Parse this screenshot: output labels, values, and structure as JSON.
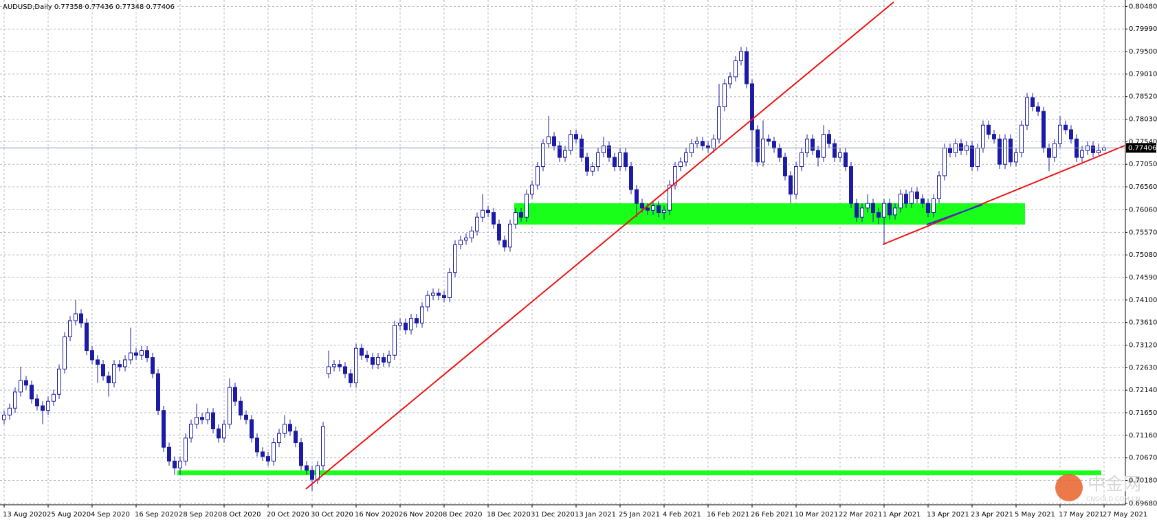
{
  "chart_data": {
    "type": "candlestick",
    "title": "AUDUSD,Daily  0.77358 0.77436 0.77348 0.77406",
    "categories": [
      "13 Aug 2020",
      null,
      null,
      null,
      null,
      null,
      null,
      null,
      "25 Aug 2020",
      null,
      null,
      null,
      null,
      null,
      null,
      null,
      "4 Sep 2020",
      null,
      null,
      null,
      null,
      null,
      null,
      null,
      "16 Sep 2020",
      null,
      null,
      null,
      null,
      null,
      null,
      null,
      "28 Sep 2020",
      null,
      null,
      null,
      null,
      null,
      null,
      null,
      "8 Oct 2020",
      null,
      null,
      null,
      null,
      null,
      null,
      null,
      "20 Oct 2020",
      null,
      null,
      null,
      null,
      null,
      null,
      null,
      "30 Oct 2020",
      null,
      null,
      null,
      null,
      null,
      null,
      null,
      "16 Nov 2020",
      null,
      null,
      null,
      null,
      null,
      null,
      null,
      "26 Nov 2020",
      null,
      null,
      null,
      null,
      null,
      null,
      null,
      "8 Dec 2020",
      null,
      null,
      null,
      null,
      null,
      null,
      null,
      "18 Dec 2020",
      null,
      null,
      null,
      null,
      null,
      null,
      null,
      "31 Dec 2020",
      null,
      null,
      null,
      null,
      null,
      null,
      null,
      "13 Jan 2021",
      null,
      null,
      null,
      null,
      null,
      null,
      null,
      "25 Jan 2021",
      null,
      null,
      null,
      null,
      null,
      null,
      null,
      "4 Feb 2021",
      null,
      null,
      null,
      null,
      null,
      null,
      null,
      "16 Feb 2021",
      null,
      null,
      null,
      null,
      null,
      null,
      null,
      "26 Feb 2021",
      null,
      null,
      null,
      null,
      null,
      null,
      null,
      "10 Mar 2021",
      null,
      null,
      null,
      null,
      null,
      null,
      null,
      "22 Mar 2021",
      null,
      null,
      null,
      null,
      null,
      null,
      null,
      "1 Apr 2021",
      null,
      null,
      null,
      null,
      null,
      null,
      null,
      "13 Apr 2021",
      null,
      null,
      null,
      null,
      null,
      null,
      null,
      "23 Apr 2021",
      null,
      null,
      null,
      null,
      null,
      null,
      null,
      "5 May 2021",
      null,
      null,
      null,
      null,
      null,
      null,
      null,
      "17 May 2021",
      null,
      null,
      null,
      null,
      null,
      null,
      null,
      "27 May 2021"
    ],
    "open": [
      0.715,
      0.716,
      0.7175,
      0.721,
      0.7235,
      0.7225,
      0.7195,
      0.718,
      0.717,
      0.719,
      0.7205,
      0.726,
      0.733,
      0.7365,
      0.738,
      0.736,
      0.73,
      0.728,
      0.727,
      0.7245,
      0.723,
      0.727,
      0.7265,
      0.728,
      0.7295,
      0.729,
      0.73,
      0.7285,
      0.725,
      0.717,
      0.709,
      0.706,
      0.7045,
      0.706,
      0.711,
      0.714,
      0.7155,
      0.715,
      0.7165,
      0.713,
      0.711,
      0.714,
      0.722,
      0.719,
      0.716,
      0.715,
      0.711,
      0.708,
      0.707,
      0.706,
      0.71,
      0.712,
      0.714,
      0.7125,
      0.71,
      0.705,
      0.704,
      0.702,
      0.705,
      0.725,
      0.7265,
      0.727,
      0.7265,
      0.725,
      0.723,
      0.7305,
      0.729,
      0.7285,
      0.727,
      0.7285,
      0.7275,
      0.729,
      0.7355,
      0.736,
      0.7345,
      0.737,
      0.736,
      0.7395,
      0.742,
      0.7425,
      0.742,
      0.7415,
      0.747,
      0.753,
      0.754,
      0.7545,
      0.756,
      0.759,
      0.7605,
      0.76,
      0.7575,
      0.754,
      0.7525,
      0.7575,
      0.76,
      0.759,
      0.764,
      0.766,
      0.77,
      0.775,
      0.7765,
      0.7745,
      0.772,
      0.7735,
      0.777,
      0.776,
      0.772,
      0.769,
      0.77,
      0.773,
      0.7745,
      0.772,
      0.77,
      0.773,
      0.77,
      0.765,
      0.762,
      0.761,
      0.7605,
      0.7615,
      0.76,
      0.7605,
      0.766,
      0.77,
      0.771,
      0.773,
      0.775,
      0.7755,
      0.7745,
      0.774,
      0.776,
      0.783,
      0.788,
      0.7895,
      0.793,
      0.795,
      0.788,
      0.778,
      0.771,
      0.776,
      0.7755,
      0.774,
      0.772,
      0.768,
      0.764,
      0.77,
      0.773,
      0.776,
      0.7735,
      0.772,
      0.777,
      0.775,
      0.772,
      0.773,
      0.77,
      0.762,
      0.759,
      0.761,
      0.762,
      0.76,
      0.759,
      0.762,
      0.7595,
      0.761,
      0.764,
      0.762,
      0.7645,
      0.763,
      0.762,
      0.76,
      0.763,
      0.768,
      0.774,
      0.773,
      0.775,
      0.7735,
      0.7745,
      0.77,
      0.774,
      0.779,
      0.777,
      0.776,
      0.7705,
      0.776,
      0.771,
      0.773,
      0.779,
      0.785,
      0.783,
      0.782,
      0.774,
      0.772,
      0.775,
      0.779,
      0.778,
      0.776,
      0.772,
      0.7735,
      0.7745,
      0.773,
      0.77358
    ],
    "high": [
      0.717,
      0.7185,
      0.722,
      0.7265,
      0.7245,
      0.7235,
      0.7205,
      0.719,
      0.72,
      0.7215,
      0.727,
      0.734,
      0.7375,
      0.741,
      0.739,
      0.737,
      0.731,
      0.729,
      0.728,
      0.7255,
      0.728,
      0.728,
      0.729,
      0.735,
      0.7305,
      0.731,
      0.731,
      0.7295,
      0.726,
      0.718,
      0.71,
      0.707,
      0.707,
      0.712,
      0.715,
      0.7185,
      0.7165,
      0.7175,
      0.7175,
      0.714,
      0.715,
      0.724,
      0.723,
      0.72,
      0.717,
      0.716,
      0.712,
      0.709,
      0.708,
      0.711,
      0.713,
      0.716,
      0.715,
      0.7135,
      0.711,
      0.706,
      0.705,
      0.706,
      0.7145,
      0.73,
      0.728,
      0.728,
      0.7275,
      0.726,
      0.7315,
      0.7315,
      0.73,
      0.7295,
      0.7295,
      0.7295,
      0.73,
      0.7365,
      0.737,
      0.737,
      0.738,
      0.738,
      0.7405,
      0.743,
      0.7435,
      0.7435,
      0.743,
      0.748,
      0.754,
      0.755,
      0.7555,
      0.757,
      0.76,
      0.764,
      0.7615,
      0.761,
      0.7585,
      0.755,
      0.7585,
      0.761,
      0.761,
      0.765,
      0.767,
      0.771,
      0.776,
      0.781,
      0.7775,
      0.7755,
      0.7745,
      0.778,
      0.778,
      0.777,
      0.773,
      0.771,
      0.774,
      0.7765,
      0.7755,
      0.773,
      0.774,
      0.774,
      0.771,
      0.766,
      0.763,
      0.762,
      0.7625,
      0.7625,
      0.7615,
      0.767,
      0.771,
      0.772,
      0.774,
      0.776,
      0.7765,
      0.7765,
      0.7755,
      0.777,
      0.788,
      0.789,
      0.7905,
      0.794,
      0.796,
      0.796,
      0.789,
      0.779,
      0.78,
      0.777,
      0.7765,
      0.775,
      0.773,
      0.769,
      0.771,
      0.774,
      0.777,
      0.777,
      0.7745,
      0.779,
      0.778,
      0.776,
      0.774,
      0.774,
      0.771,
      0.763,
      0.762,
      0.764,
      0.763,
      0.761,
      0.763,
      0.763,
      0.762,
      0.765,
      0.765,
      0.7655,
      0.7655,
      0.764,
      0.763,
      0.764,
      0.769,
      0.775,
      0.775,
      0.776,
      0.776,
      0.7755,
      0.7755,
      0.775,
      0.78,
      0.78,
      0.778,
      0.777,
      0.777,
      0.777,
      0.774,
      0.78,
      0.786,
      0.786,
      0.784,
      0.783,
      0.775,
      0.776,
      0.781,
      0.78,
      0.779,
      0.777,
      0.7745,
      0.7755,
      0.7755,
      0.775,
      0.77436
    ],
    "low": [
      0.714,
      0.715,
      0.7165,
      0.72,
      0.7215,
      0.7185,
      0.717,
      0.714,
      0.716,
      0.718,
      0.7195,
      0.725,
      0.732,
      0.7355,
      0.735,
      0.729,
      0.727,
      0.723,
      0.7235,
      0.72,
      0.722,
      0.7255,
      0.7255,
      0.727,
      0.728,
      0.728,
      0.7275,
      0.724,
      0.716,
      0.708,
      0.705,
      0.703,
      0.703,
      0.705,
      0.71,
      0.713,
      0.714,
      0.714,
      0.712,
      0.71,
      0.71,
      0.713,
      0.718,
      0.715,
      0.714,
      0.71,
      0.707,
      0.706,
      0.705,
      0.705,
      0.709,
      0.711,
      0.7115,
      0.709,
      0.704,
      0.703,
      0.6995,
      0.701,
      0.704,
      0.724,
      0.7255,
      0.7255,
      0.724,
      0.722,
      0.722,
      0.728,
      0.7275,
      0.726,
      0.726,
      0.7265,
      0.7265,
      0.728,
      0.7345,
      0.7335,
      0.7335,
      0.735,
      0.735,
      0.7385,
      0.741,
      0.741,
      0.7405,
      0.7405,
      0.746,
      0.752,
      0.753,
      0.7535,
      0.755,
      0.758,
      0.759,
      0.7565,
      0.753,
      0.7515,
      0.7515,
      0.7565,
      0.758,
      0.758,
      0.763,
      0.765,
      0.769,
      0.774,
      0.7735,
      0.771,
      0.771,
      0.7725,
      0.775,
      0.771,
      0.768,
      0.768,
      0.769,
      0.772,
      0.771,
      0.769,
      0.769,
      0.769,
      0.764,
      0.759,
      0.76,
      0.7595,
      0.7595,
      0.759,
      0.7585,
      0.7595,
      0.765,
      0.769,
      0.77,
      0.772,
      0.774,
      0.7735,
      0.773,
      0.773,
      0.775,
      0.782,
      0.787,
      0.7885,
      0.792,
      0.787,
      0.771,
      0.77,
      0.77,
      0.7745,
      0.773,
      0.771,
      0.767,
      0.762,
      0.763,
      0.769,
      0.772,
      0.7725,
      0.77,
      0.771,
      0.774,
      0.771,
      0.771,
      0.769,
      0.761,
      0.758,
      0.758,
      0.76,
      0.758,
      0.7575,
      0.753,
      0.7585,
      0.7585,
      0.76,
      0.761,
      0.761,
      0.762,
      0.761,
      0.759,
      0.759,
      0.762,
      0.767,
      0.772,
      0.772,
      0.7725,
      0.7725,
      0.769,
      0.769,
      0.773,
      0.776,
      0.775,
      0.7695,
      0.7695,
      0.77,
      0.77,
      0.772,
      0.778,
      0.782,
      0.781,
      0.773,
      0.769,
      0.771,
      0.774,
      0.777,
      0.775,
      0.771,
      0.771,
      0.7725,
      0.772,
      0.7725,
      0.77348
    ],
    "close": [
      0.716,
      0.7175,
      0.721,
      0.7235,
      0.7225,
      0.7195,
      0.718,
      0.717,
      0.719,
      0.7205,
      0.726,
      0.733,
      0.7365,
      0.738,
      0.736,
      0.73,
      0.728,
      0.727,
      0.7245,
      0.723,
      0.727,
      0.7265,
      0.728,
      0.7295,
      0.729,
      0.73,
      0.7285,
      0.725,
      0.717,
      0.709,
      0.706,
      0.7045,
      0.706,
      0.711,
      0.714,
      0.7155,
      0.715,
      0.7165,
      0.713,
      0.711,
      0.714,
      0.722,
      0.719,
      0.716,
      0.715,
      0.711,
      0.708,
      0.707,
      0.706,
      0.71,
      0.712,
      0.714,
      0.7125,
      0.71,
      0.705,
      0.704,
      0.702,
      0.705,
      0.7135,
      0.7265,
      0.727,
      0.7265,
      0.725,
      0.723,
      0.7305,
      0.729,
      0.7285,
      0.727,
      0.7285,
      0.7275,
      0.729,
      0.7355,
      0.736,
      0.7345,
      0.737,
      0.736,
      0.7395,
      0.742,
      0.7425,
      0.742,
      0.7415,
      0.747,
      0.753,
      0.754,
      0.7545,
      0.756,
      0.759,
      0.7605,
      0.76,
      0.7575,
      0.754,
      0.7525,
      0.7575,
      0.76,
      0.759,
      0.764,
      0.766,
      0.77,
      0.775,
      0.7765,
      0.7745,
      0.772,
      0.7735,
      0.777,
      0.776,
      0.772,
      0.769,
      0.77,
      0.773,
      0.7745,
      0.772,
      0.77,
      0.773,
      0.77,
      0.765,
      0.762,
      0.761,
      0.7605,
      0.7615,
      0.76,
      0.7605,
      0.766,
      0.77,
      0.771,
      0.773,
      0.775,
      0.7755,
      0.7745,
      0.774,
      0.776,
      0.783,
      0.788,
      0.7895,
      0.793,
      0.795,
      0.788,
      0.778,
      0.771,
      0.776,
      0.7755,
      0.774,
      0.772,
      0.768,
      0.764,
      0.77,
      0.773,
      0.776,
      0.7735,
      0.772,
      0.777,
      0.775,
      0.772,
      0.773,
      0.77,
      0.762,
      0.759,
      0.761,
      0.762,
      0.76,
      0.759,
      0.762,
      0.7595,
      0.761,
      0.764,
      0.762,
      0.7645,
      0.763,
      0.762,
      0.76,
      0.763,
      0.768,
      0.774,
      0.773,
      0.775,
      0.7735,
      0.7745,
      0.77,
      0.774,
      0.779,
      0.777,
      0.776,
      0.7705,
      0.776,
      0.771,
      0.773,
      0.779,
      0.785,
      0.783,
      0.782,
      0.774,
      0.772,
      0.775,
      0.779,
      0.778,
      0.776,
      0.772,
      0.7735,
      0.7745,
      0.773,
      0.7735,
      0.77406
    ],
    "up_color": "#ffffff",
    "down_color": "#1b1ba8",
    "outline_color": "#1b1ba8",
    "current_price": 0.77406,
    "ylim": [
      0.6965,
      0.8062
    ],
    "yticks": [
      {
        "value": 0.8048,
        "label": "0.80480"
      },
      {
        "value": 0.7999,
        "label": "0.79990"
      },
      {
        "value": 0.795,
        "label": "0.79500"
      },
      {
        "value": 0.7901,
        "label": "0.79010"
      },
      {
        "value": 0.7852,
        "label": "0.78520"
      },
      {
        "value": 0.7803,
        "label": "0.78030"
      },
      {
        "value": 0.7754,
        "label": "0.77540"
      },
      {
        "value": 0.7705,
        "label": "0.77050"
      },
      {
        "value": 0.7656,
        "label": "0.76560"
      },
      {
        "value": 0.7606,
        "label": "0.76060"
      },
      {
        "value": 0.7557,
        "label": "0.75570"
      },
      {
        "value": 0.7508,
        "label": "0.75080"
      },
      {
        "value": 0.7459,
        "label": "0.74590"
      },
      {
        "value": 0.741,
        "label": "0.74100"
      },
      {
        "value": 0.7361,
        "label": "0.73610"
      },
      {
        "value": 0.7312,
        "label": "0.73120"
      },
      {
        "value": 0.7263,
        "label": "0.72630"
      },
      {
        "value": 0.7214,
        "label": "0.72140"
      },
      {
        "value": 0.7165,
        "label": "0.71650"
      },
      {
        "value": 0.7116,
        "label": "0.71160"
      },
      {
        "value": 0.7067,
        "label": "0.70670"
      },
      {
        "value": 0.7018,
        "label": "0.70180"
      },
      {
        "value": 0.6968,
        "label": "0.69680"
      }
    ],
    "grid": true,
    "watermark": {
      "text": "中金网",
      "sub": "CNGOLD.COM.CN"
    }
  }
}
